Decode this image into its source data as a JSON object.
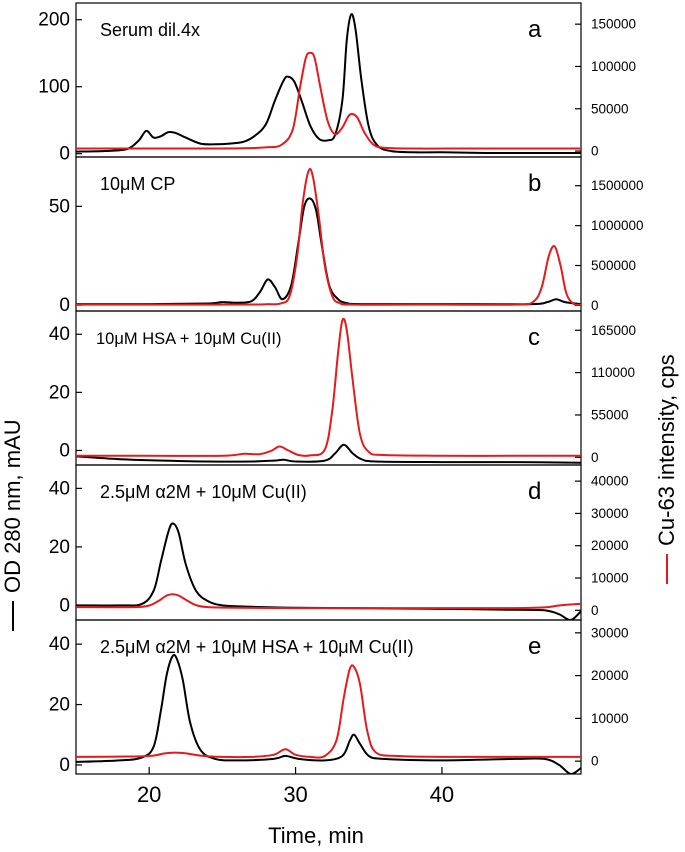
{
  "chart_data": [
    {
      "type": "line",
      "panel_label": "a",
      "annotation": "Serum dil.4x",
      "x_range": [
        15,
        49.5
      ],
      "y_left_range": [
        -5,
        225
      ],
      "y_left_ticks": [
        0,
        100,
        200
      ],
      "y_right_range": [
        -7000,
        175000
      ],
      "y_right_ticks": [
        0,
        50000,
        100000,
        150000
      ],
      "series": [
        {
          "axis": "left",
          "color": "#000000",
          "x": [
            15,
            17,
            18.5,
            19.3,
            19.8,
            20.3,
            20.8,
            21.3,
            21.8,
            22.5,
            23.5,
            24.5,
            25.5,
            26.5,
            27.3,
            28,
            28.6,
            29.2,
            29.5,
            29.9,
            30.4,
            31,
            31.6,
            32.2,
            32.7,
            33.2,
            33.5,
            33.8,
            34.1,
            34.5,
            35,
            35.6,
            36.5,
            38,
            40,
            43,
            46,
            49.5
          ],
          "y": [
            3,
            4,
            7,
            20,
            34,
            24,
            26,
            32,
            31,
            24,
            15,
            14,
            15,
            18,
            28,
            45,
            80,
            110,
            115,
            108,
            80,
            42,
            22,
            20,
            28,
            80,
            170,
            208,
            185,
            110,
            40,
            12,
            4,
            2,
            2,
            1,
            1,
            1
          ]
        },
        {
          "axis": "right",
          "color": "#e41a1c",
          "x": [
            15,
            20,
            25,
            27,
            28,
            29,
            29.8,
            30.3,
            30.7,
            31,
            31.3,
            31.7,
            32.2,
            32.7,
            33.2,
            33.7,
            34.2,
            34.7,
            35.3,
            36,
            38,
            42,
            46,
            49.5
          ],
          "y": [
            3000,
            3000,
            3000,
            3500,
            4500,
            7000,
            25000,
            75000,
            110000,
            116000,
            110000,
            75000,
            35000,
            20000,
            28000,
            43000,
            40000,
            22000,
            8000,
            4000,
            3000,
            3000,
            3000,
            3000
          ]
        }
      ]
    },
    {
      "type": "line",
      "panel_label": "b",
      "annotation": "10μM CP",
      "x_range": [
        15,
        49.5
      ],
      "y_left_range": [
        -3,
        75
      ],
      "y_left_ticks": [
        0,
        50
      ],
      "y_right_range": [
        -70000,
        1860000
      ],
      "y_right_ticks": [
        0,
        500000,
        1000000,
        1500000
      ],
      "series": [
        {
          "axis": "left",
          "color": "#000000",
          "x": [
            15,
            20,
            24,
            25,
            26,
            27,
            27.6,
            28.1,
            28.6,
            29.1,
            29.7,
            30.2,
            30.6,
            31,
            31.4,
            31.8,
            32.3,
            32.9,
            33.5,
            34.5,
            40,
            46,
            47.2,
            47.8,
            48.4,
            49.5
          ],
          "y": [
            0.5,
            0.5,
            0.8,
            1.5,
            1.2,
            2,
            7,
            13,
            9,
            3,
            10,
            32,
            50,
            54,
            48,
            30,
            10,
            3,
            1,
            0.5,
            0.5,
            0.5,
            1.5,
            3,
            1.5,
            0.5
          ]
        },
        {
          "axis": "right",
          "color": "#e41a1c",
          "x": [
            15,
            24,
            25,
            27,
            28,
            29,
            29.6,
            30.1,
            30.5,
            30.9,
            31.2,
            31.6,
            32,
            32.5,
            33,
            34,
            40,
            45,
            46.2,
            46.8,
            47.3,
            47.7,
            48.1,
            48.5,
            49,
            49.5
          ],
          "y": [
            10000,
            10000,
            12000,
            12000,
            15000,
            25000,
            120000,
            600000,
            1300000,
            1690000,
            1600000,
            1100000,
            500000,
            120000,
            30000,
            10000,
            10000,
            10000,
            40000,
            220000,
            620000,
            740000,
            500000,
            150000,
            20000,
            10000
          ]
        }
      ]
    },
    {
      "type": "line",
      "panel_label": "c",
      "annotation": "10μM HSA + 10μM Cu(II)",
      "x_range": [
        15,
        49.5
      ],
      "y_left_range": [
        -5,
        48
      ],
      "y_left_ticks": [
        0,
        20,
        40
      ],
      "y_right_range": [
        -10000,
        190000
      ],
      "y_right_ticks": [
        0,
        55000,
        110000,
        165000
      ],
      "series": [
        {
          "axis": "left",
          "color": "#000000",
          "x": [
            15,
            18,
            21,
            24,
            27,
            28.5,
            29.2,
            30,
            32,
            32.7,
            33.3,
            33.9,
            34.5,
            35.5,
            40,
            45,
            49.5
          ],
          "y": [
            -2,
            -3,
            -3.5,
            -3.8,
            -3.8,
            -3.5,
            -3.2,
            -3.8,
            -3.5,
            -1,
            2,
            -1,
            -3,
            -3.8,
            -4,
            -4,
            -4.2
          ]
        },
        {
          "axis": "right",
          "color": "#e41a1c",
          "x": [
            15,
            20,
            25,
            26.5,
            27.5,
            28.3,
            28.9,
            29.5,
            30.2,
            31,
            32,
            32.5,
            32.9,
            33.2,
            33.5,
            33.9,
            34.4,
            35,
            36,
            40,
            45,
            49.5
          ],
          "y": [
            2000,
            2000,
            2000,
            4500,
            4000,
            8000,
            14000,
            9000,
            3000,
            2500,
            10000,
            60000,
            135000,
            178000,
            165000,
            100000,
            30000,
            7000,
            3000,
            2000,
            2000,
            2000
          ]
        }
      ]
    },
    {
      "type": "line",
      "panel_label": "d",
      "annotation": "2.5μM α2M + 10μM Cu(II)",
      "x_range": [
        15,
        49.5
      ],
      "y_left_range": [
        -5,
        48
      ],
      "y_left_ticks": [
        0,
        20,
        40
      ],
      "y_right_range": [
        -3000,
        45000
      ],
      "y_right_ticks": [
        0,
        10000,
        20000,
        30000,
        40000
      ],
      "series": [
        {
          "axis": "left",
          "color": "#000000",
          "x": [
            15,
            18,
            19.5,
            20.3,
            20.8,
            21.3,
            21.6,
            22,
            22.5,
            23.2,
            24,
            25,
            27,
            30,
            35,
            40,
            45,
            47,
            48,
            48.8,
            49.5
          ],
          "y": [
            0,
            0,
            0.5,
            5,
            15,
            25,
            28,
            25,
            14,
            5,
            1.5,
            0,
            -0.5,
            -0.8,
            -1,
            -1.2,
            -1.5,
            -1.7,
            -3,
            -5,
            -2
          ]
        },
        {
          "axis": "right",
          "color": "#e41a1c",
          "x": [
            15,
            19,
            20,
            20.6,
            21.2,
            21.6,
            22,
            22.6,
            23.2,
            24,
            26,
            30,
            35,
            40,
            45,
            47,
            48,
            49,
            49.5
          ],
          "y": [
            1000,
            1000,
            1500,
            2800,
            4600,
            5000,
            4600,
            3000,
            1600,
            1000,
            800,
            700,
            700,
            700,
            700,
            900,
            1500,
            1900,
            2000
          ]
        }
      ]
    },
    {
      "type": "line",
      "panel_label": "e",
      "annotation": "2.5μM α2M + 10μM HSA + 10μM Cu(II)",
      "x_range": [
        15,
        49.5
      ],
      "y_left_range": [
        -3,
        48
      ],
      "y_left_ticks": [
        0,
        20,
        40
      ],
      "y_right_range": [
        -3000,
        33000
      ],
      "y_right_ticks": [
        0,
        10000,
        20000,
        30000
      ],
      "series": [
        {
          "axis": "left",
          "color": "#000000",
          "x": [
            15,
            18,
            19.5,
            20.3,
            20.8,
            21.2,
            21.6,
            21.9,
            22.3,
            22.8,
            23.5,
            24.5,
            26,
            28.5,
            29.3,
            30.2,
            32,
            33.2,
            33.7,
            34,
            34.4,
            35,
            36,
            40,
            45,
            47,
            48,
            48.8,
            49.5
          ],
          "y": [
            1,
            1.5,
            2.5,
            6,
            18,
            30,
            36,
            35,
            28,
            14,
            5,
            2,
            1.5,
            2,
            3,
            2,
            1.5,
            3,
            8,
            10,
            7,
            3,
            2,
            1.5,
            2,
            2,
            0,
            -3,
            -1
          ]
        },
        {
          "axis": "right",
          "color": "#e41a1c",
          "x": [
            15,
            19,
            20.3,
            21,
            21.8,
            22.6,
            23.5,
            25,
            27,
            28.5,
            29.3,
            30,
            31,
            32,
            32.8,
            33.3,
            33.7,
            34,
            34.4,
            34.9,
            35.5,
            37,
            40,
            45,
            49.5
          ],
          "y": [
            1000,
            1100,
            1300,
            1800,
            2000,
            1800,
            1300,
            1000,
            1000,
            1500,
            2800,
            1500,
            1000,
            1200,
            5000,
            15000,
            21500,
            22000,
            18000,
            7000,
            2000,
            1200,
            1000,
            1000,
            1000
          ]
        }
      ]
    }
  ],
  "x_axis": {
    "label": "Time, min",
    "ticks": [
      20,
      30,
      40
    ]
  },
  "y_left_label": "OD 280 nm, mAU",
  "y_right_label": "Cu-63 intensity, cps",
  "legend_marks": {
    "left": "—",
    "right": "—"
  },
  "colors": {
    "left_series": "#000000",
    "right_series": "#e41a1c"
  }
}
